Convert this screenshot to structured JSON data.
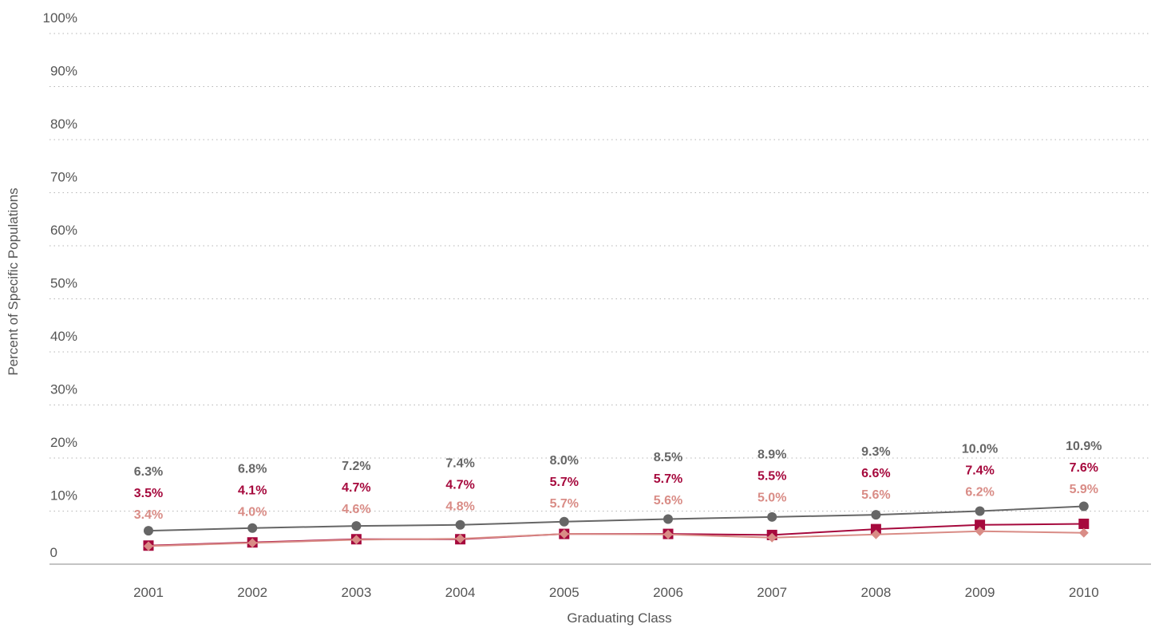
{
  "chart_data": {
    "type": "line",
    "title": "",
    "xlabel": "Graduating Class",
    "ylabel": "Percent of Specific Populations",
    "ylim": [
      0,
      100
    ],
    "yticks": [
      "0",
      "10%",
      "20%",
      "30%",
      "40%",
      "50%",
      "60%",
      "70%",
      "80%",
      "90%",
      "100%"
    ],
    "categories": [
      "2001",
      "2002",
      "2003",
      "2004",
      "2005",
      "2006",
      "2007",
      "2008",
      "2009",
      "2010"
    ],
    "grid": "horizontal dotted",
    "legend": "none",
    "series": [
      {
        "color": "#666666",
        "marker": "circle",
        "values": [
          6.3,
          6.8,
          7.2,
          7.4,
          8.0,
          8.5,
          8.9,
          9.3,
          10.0,
          10.9
        ],
        "labels": [
          "6.3%",
          "6.8%",
          "7.2%",
          "7.4%",
          "8.0%",
          "8.5%",
          "8.9%",
          "9.3%",
          "10.0%",
          "10.9%"
        ]
      },
      {
        "color": "#A6093D",
        "marker": "square",
        "values": [
          3.5,
          4.1,
          4.7,
          4.7,
          5.7,
          5.7,
          5.5,
          6.6,
          7.4,
          7.6
        ],
        "labels": [
          "3.5%",
          "4.1%",
          "4.7%",
          "4.7%",
          "5.7%",
          "5.7%",
          "5.5%",
          "6.6%",
          "7.4%",
          "7.6%"
        ]
      },
      {
        "color": "#D98C86",
        "marker": "diamond",
        "values": [
          3.4,
          4.0,
          4.6,
          4.8,
          5.7,
          5.6,
          5.0,
          5.6,
          6.2,
          5.9
        ],
        "labels": [
          "3.4%",
          "4.0%",
          "4.6%",
          "4.8%",
          "5.7%",
          "5.6%",
          "5.0%",
          "5.6%",
          "6.2%",
          "5.9%"
        ]
      }
    ]
  }
}
